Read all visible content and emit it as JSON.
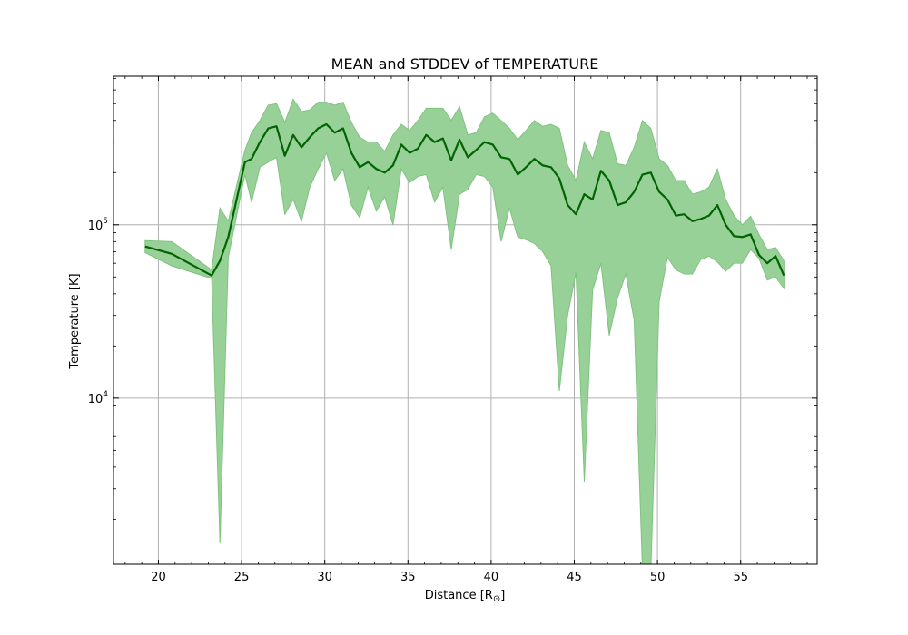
{
  "chart_data": {
    "type": "line",
    "title": "MEAN and STDDEV of TEMPERATURE",
    "xlabel_text": "Distance [R",
    "xlabel_sub": "⊙",
    "xlabel_close": "]",
    "ylabel": "Temperature [K]",
    "xlim": [
      17.3,
      59.6
    ],
    "ylim": [
      1100,
      720000
    ],
    "yscale": "log",
    "grid": true,
    "x_ticks": [
      20,
      25,
      30,
      35,
      40,
      45,
      50,
      55
    ],
    "y_major_ticks": [
      {
        "value": 10000,
        "base": "10",
        "exp": "4"
      },
      {
        "value": 100000,
        "base": "10",
        "exp": "5"
      }
    ],
    "colors": {
      "mean_line": "#006400",
      "band_fill": "#98d198",
      "band_edge": "#7fc27f",
      "grid": "#b0b0b0"
    },
    "series": [
      {
        "kind": "mean",
        "x": [
          19.2,
          20.8,
          23.2,
          23.7,
          24.2,
          25.2,
          25.6,
          26.1,
          26.6,
          27.1,
          27.6,
          28.1,
          28.6,
          29.1,
          29.6,
          30.1,
          30.6,
          31.1,
          31.6,
          32.1,
          32.6,
          33.1,
          33.6,
          34.1,
          34.6,
          35.1,
          35.6,
          36.1,
          36.6,
          37.1,
          37.6,
          38.1,
          38.6,
          39.1,
          39.6,
          40.1,
          40.6,
          41.1,
          41.6,
          42.1,
          42.6,
          43.1,
          43.6,
          44.1,
          44.6,
          45.1,
          45.6,
          46.1,
          46.6,
          47.1,
          47.6,
          48.1,
          48.6,
          49.1,
          49.6,
          50.1,
          50.6,
          51.1,
          51.6,
          52.1,
          52.6,
          53.1,
          53.6,
          54.1,
          54.6,
          55.1,
          55.6,
          56.1,
          56.6,
          57.1,
          57.6
        ],
        "y": [
          75000,
          68000,
          51000,
          62000,
          85000,
          230000,
          240000,
          300000,
          360000,
          370000,
          250000,
          330000,
          280000,
          320000,
          360000,
          380000,
          340000,
          360000,
          260000,
          215000,
          230000,
          210000,
          200000,
          220000,
          290000,
          260000,
          275000,
          330000,
          300000,
          315000,
          235000,
          310000,
          245000,
          270000,
          300000,
          290000,
          245000,
          240000,
          195000,
          215000,
          240000,
          220000,
          215000,
          185000,
          130000,
          115000,
          150000,
          140000,
          205000,
          180000,
          130000,
          135000,
          155000,
          195000,
          200000,
          155000,
          140000,
          113000,
          115000,
          105000,
          108000,
          113000,
          130000,
          100000,
          86000,
          85000,
          88000,
          67000,
          60000,
          66000,
          51000
        ]
      },
      {
        "kind": "upper",
        "x": [
          19.2,
          20.8,
          23.2,
          23.7,
          24.2,
          25.2,
          25.6,
          26.1,
          26.6,
          27.1,
          27.6,
          28.1,
          28.6,
          29.1,
          29.6,
          30.1,
          30.6,
          31.1,
          31.6,
          32.1,
          32.6,
          33.1,
          33.6,
          34.1,
          34.6,
          35.1,
          35.6,
          36.1,
          36.6,
          37.1,
          37.6,
          38.1,
          38.6,
          39.1,
          39.6,
          40.1,
          40.6,
          41.1,
          41.6,
          42.1,
          42.6,
          43.1,
          43.6,
          44.1,
          44.6,
          45.1,
          45.6,
          46.1,
          46.6,
          47.1,
          47.6,
          48.1,
          48.6,
          49.1,
          49.6,
          50.1,
          50.6,
          51.1,
          51.6,
          52.1,
          52.6,
          53.1,
          53.6,
          54.1,
          54.6,
          55.1,
          55.6,
          56.1,
          56.6,
          57.1,
          57.6
        ],
        "y": [
          81000,
          80000,
          55000,
          125000,
          105000,
          270000,
          340000,
          400000,
          490000,
          500000,
          390000,
          530000,
          450000,
          460000,
          510000,
          510000,
          490000,
          510000,
          390000,
          320000,
          300000,
          300000,
          265000,
          330000,
          380000,
          350000,
          400000,
          470000,
          470000,
          470000,
          400000,
          480000,
          330000,
          340000,
          420000,
          440000,
          400000,
          360000,
          310000,
          350000,
          400000,
          370000,
          380000,
          360000,
          220000,
          180000,
          300000,
          240000,
          350000,
          340000,
          225000,
          220000,
          280000,
          400000,
          360000,
          240000,
          220000,
          180000,
          180000,
          150000,
          155000,
          165000,
          210000,
          140000,
          113000,
          100000,
          112000,
          88000,
          72000,
          74000,
          62000
        ]
      },
      {
        "kind": "lower",
        "x": [
          19.2,
          20.8,
          23.2,
          23.7,
          24.2,
          25.2,
          25.6,
          26.1,
          26.6,
          27.1,
          27.6,
          28.1,
          28.6,
          29.1,
          29.6,
          30.1,
          30.6,
          31.1,
          31.6,
          32.1,
          32.6,
          33.1,
          33.6,
          34.1,
          34.6,
          35.1,
          35.6,
          36.1,
          36.6,
          37.1,
          37.6,
          38.1,
          38.6,
          39.1,
          39.6,
          40.1,
          40.6,
          41.1,
          41.6,
          42.1,
          42.6,
          43.1,
          43.6,
          44.1,
          44.6,
          45.1,
          45.6,
          46.1,
          46.6,
          47.1,
          47.6,
          48.1,
          48.6,
          49.1,
          49.6,
          50.1,
          50.6,
          51.1,
          51.6,
          52.1,
          52.6,
          53.1,
          53.6,
          54.1,
          54.6,
          55.1,
          55.6,
          56.1,
          56.6,
          57.1,
          57.6
        ],
        "y": [
          69000,
          58000,
          49000,
          1450,
          65000,
          195000,
          135000,
          215000,
          230000,
          245000,
          115000,
          140000,
          105000,
          165000,
          210000,
          260000,
          180000,
          210000,
          130000,
          110000,
          165000,
          120000,
          145000,
          100000,
          210000,
          175000,
          190000,
          195000,
          135000,
          165000,
          72000,
          150000,
          160000,
          195000,
          190000,
          165000,
          80000,
          125000,
          85000,
          82000,
          78000,
          70000,
          58000,
          11000,
          30000,
          53000,
          3300,
          42000,
          60000,
          23000,
          38000,
          52000,
          28000,
          1000,
          1000,
          36000,
          65000,
          55000,
          52000,
          52000,
          63000,
          66000,
          61000,
          54000,
          60000,
          60000,
          72000,
          64000,
          48000,
          50000,
          43000
        ]
      }
    ]
  }
}
